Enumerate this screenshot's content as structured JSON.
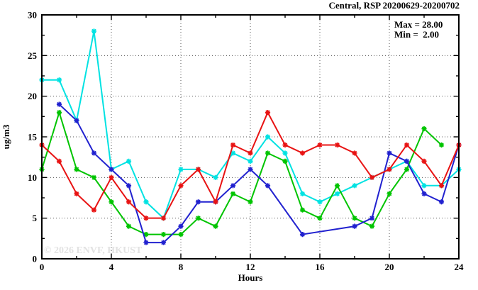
{
  "window": {
    "title": "Central, RSP 20200629-20200702"
  },
  "chart_data": {
    "type": "line",
    "title": "Central, RSP 20200629-20200702",
    "xlabel": "Hours",
    "ylabel": "ug/m3",
    "xlim": [
      0,
      24
    ],
    "ylim": [
      0,
      30
    ],
    "xticks": [
      0,
      4,
      8,
      12,
      16,
      20,
      24
    ],
    "yticks": [
      0,
      5,
      10,
      15,
      20,
      25,
      30
    ],
    "minor_x_step": 2,
    "minor_y_step": 2.5,
    "grid": true,
    "legend_position": "none",
    "stats": {
      "max": 28.0,
      "min": 2.0
    },
    "annotations": {
      "max_label": "Max = 28.00",
      "min_label": "Min =  2.00"
    },
    "watermark": "© 2026 ENVF, HKUST",
    "x": [
      0,
      1,
      2,
      3,
      4,
      5,
      6,
      7,
      8,
      9,
      10,
      11,
      12,
      13,
      14,
      15,
      16,
      17,
      18,
      19,
      20,
      21,
      22,
      23,
      24
    ],
    "series": [
      {
        "name": "cyan-series",
        "color": "#00e2e2",
        "values": [
          22,
          22,
          17,
          28,
          11,
          12,
          7,
          5,
          11,
          11,
          10,
          13,
          12,
          15,
          13,
          8,
          7,
          8,
          9,
          10,
          11,
          12,
          9,
          9,
          11
        ]
      },
      {
        "name": "green-series",
        "color": "#00c400",
        "values": [
          11,
          18,
          11,
          10,
          7,
          4,
          3,
          3,
          3,
          5,
          4,
          8,
          7,
          13,
          12,
          6,
          5,
          9,
          5,
          4,
          8,
          11,
          16,
          14,
          null
        ]
      },
      {
        "name": "blue-series",
        "color": "#2121cf",
        "values": [
          null,
          19,
          17,
          13,
          11,
          9,
          2,
          2,
          4,
          7,
          7,
          9,
          11,
          9,
          null,
          3,
          null,
          null,
          4,
          5,
          13,
          12,
          8,
          7,
          14
        ]
      },
      {
        "name": "red-series",
        "color": "#e81313",
        "values": [
          14,
          12,
          8,
          6,
          10,
          7,
          5,
          5,
          9,
          11,
          7,
          14,
          13,
          18,
          14,
          13,
          14,
          14,
          13,
          10,
          11,
          14,
          12,
          9,
          14
        ]
      }
    ]
  }
}
